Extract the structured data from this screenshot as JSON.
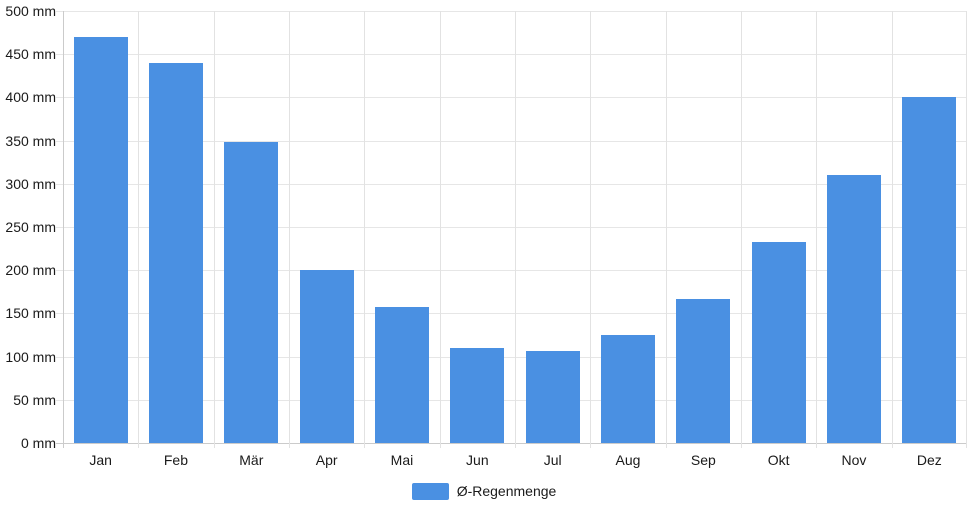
{
  "chart_data": {
    "type": "bar",
    "title": "",
    "categories": [
      "Jan",
      "Feb",
      "Mär",
      "Apr",
      "Mai",
      "Jun",
      "Jul",
      "Aug",
      "Sep",
      "Okt",
      "Nov",
      "Dez"
    ],
    "series": [
      {
        "name": "Ø-Regenmenge",
        "values": [
          470,
          440,
          348,
          200,
          158,
          110,
          107,
          125,
          167,
          233,
          310,
          400
        ]
      }
    ],
    "unit": "mm",
    "xlabel": "",
    "ylabel": "",
    "ylim": [
      0,
      500
    ],
    "ytick_step": 50,
    "ytick_labels": [
      "0 mm",
      "50 mm",
      "100 mm",
      "150 mm",
      "200 mm",
      "250 mm",
      "300 mm",
      "350 mm",
      "400 mm",
      "450 mm",
      "500 mm"
    ],
    "grid": true,
    "legend_position": "bottom",
    "colors": {
      "bar": "#4A90E2",
      "grid": "#E6E6E6",
      "axis": "#CBCBCB",
      "text": "#1A1A1A",
      "background": "#FFFFFF"
    }
  },
  "legend": {
    "label": "Ø-Regenmenge"
  }
}
